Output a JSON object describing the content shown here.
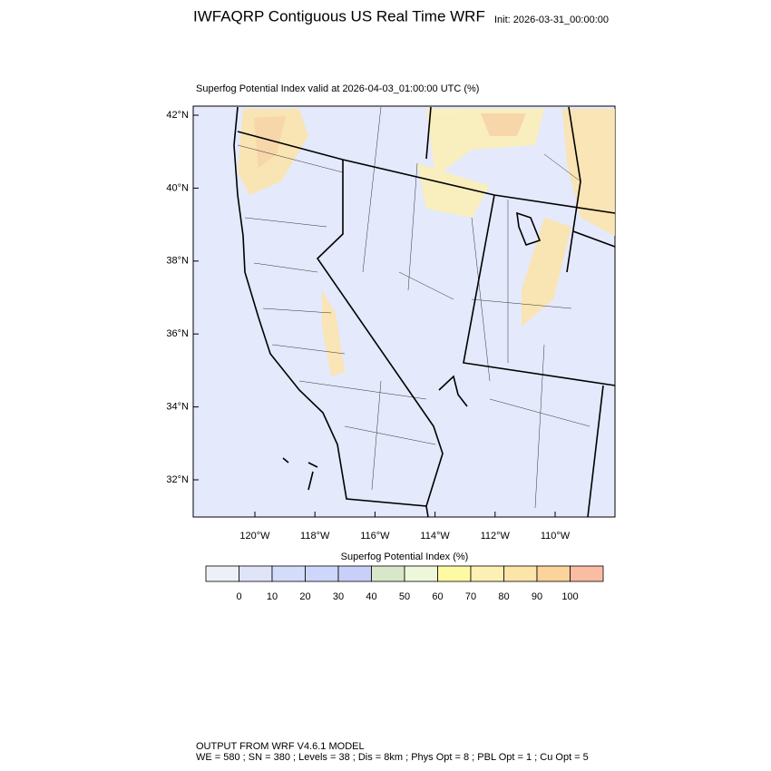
{
  "header": {
    "title": "IWFAQRP Contiguous US Real Time WRF",
    "init": "Init: 2026-03-31_00:00:00"
  },
  "map": {
    "subtitle": "Superfog Potential Index valid at 2026-04-03_01:00:00 UTC   (%)",
    "lat_ticks": [
      {
        "value": 42,
        "label": "42°N"
      },
      {
        "value": 40,
        "label": "40°N"
      },
      {
        "value": 38,
        "label": "38°N"
      },
      {
        "value": 36,
        "label": "36°N"
      },
      {
        "value": 34,
        "label": "34°N"
      },
      {
        "value": 32,
        "label": "32°N"
      }
    ],
    "lon_ticks": [
      {
        "value": -120,
        "label": "120°W"
      },
      {
        "value": -118,
        "label": "118°W"
      },
      {
        "value": -116,
        "label": "116°W"
      },
      {
        "value": -114,
        "label": "114°W"
      },
      {
        "value": -112,
        "label": "112°W"
      },
      {
        "value": -110,
        "label": "110°W"
      }
    ]
  },
  "colorbar": {
    "title": "Superfog Potential Index  (%)",
    "levels": [
      0,
      10,
      20,
      30,
      40,
      50,
      60,
      70,
      80,
      90,
      100
    ],
    "colors": [
      "#edf0f6",
      "#dfe4f9",
      "#d3dcfa",
      "#cdd7fb",
      "#c8d0fa",
      "#d8e7c9",
      "#eef7d9",
      "#fefaa4",
      "#fdf0b4",
      "#fde4a8",
      "#fbd39b",
      "#fbbca4"
    ]
  },
  "footer": {
    "line1": "OUTPUT FROM WRF V4.6.1 MODEL",
    "line2": "WE = 580 ; SN = 380 ; Levels = 38 ; Dis = 8km ; Phys Opt = 8 ; PBL Opt = 1 ; Cu Opt = 5"
  }
}
